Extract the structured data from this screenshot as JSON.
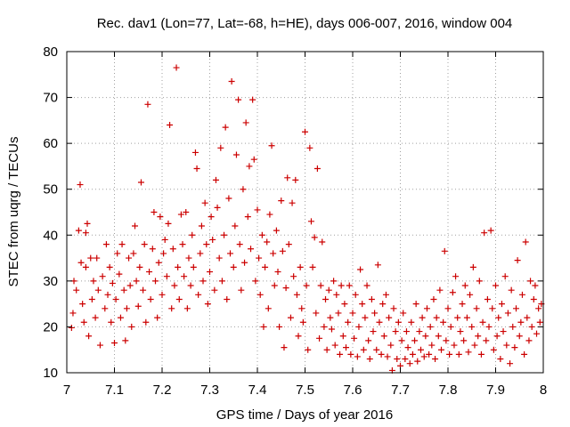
{
  "chart_data": {
    "type": "scatter",
    "title": "Rec. dav1 (Lon=77, Lat=-68, h=HE), days 006-007, 2016, window 004",
    "xlabel": "GPS time / Days of year 2016",
    "ylabel": "STEC from uqrg / TECUs",
    "xlim": [
      7.0,
      8.0
    ],
    "ylim": [
      10,
      80
    ],
    "xticks": [
      7.0,
      7.1,
      7.2,
      7.3,
      7.4,
      7.5,
      7.6,
      7.7,
      7.8,
      7.9,
      8.0
    ],
    "xtick_labels": [
      "7",
      "7.1",
      "7.2",
      "7.3",
      "7.4",
      "7.5",
      "7.6",
      "7.7",
      "7.8",
      "7.9",
      "8"
    ],
    "yticks": [
      10,
      20,
      30,
      40,
      50,
      60,
      70,
      80
    ],
    "ytick_labels": [
      "10",
      "20",
      "30",
      "40",
      "50",
      "60",
      "70",
      "80"
    ],
    "grid": true,
    "marker": "plus",
    "color": "#cc0000",
    "series": [
      {
        "name": "STEC",
        "points": [
          [
            7.01,
            19.8
          ],
          [
            7.013,
            23.0
          ],
          [
            7.015,
            30.0
          ],
          [
            7.02,
            28.0
          ],
          [
            7.025,
            41.0
          ],
          [
            7.028,
            51.0
          ],
          [
            7.03,
            34.0
          ],
          [
            7.033,
            25.0
          ],
          [
            7.036,
            21.0
          ],
          [
            7.04,
            33.0
          ],
          [
            7.04,
            40.5
          ],
          [
            7.043,
            42.5
          ],
          [
            7.046,
            18.0
          ],
          [
            7.05,
            35.0
          ],
          [
            7.053,
            26.0
          ],
          [
            7.056,
            30.0
          ],
          [
            7.06,
            22.0
          ],
          [
            7.063,
            35.0
          ],
          [
            7.066,
            28.0
          ],
          [
            7.07,
            16.0
          ],
          [
            7.075,
            31.0
          ],
          [
            7.08,
            24.0
          ],
          [
            7.083,
            38.0
          ],
          [
            7.086,
            27.0
          ],
          [
            7.09,
            33.0
          ],
          [
            7.093,
            21.0
          ],
          [
            7.096,
            29.5
          ],
          [
            7.1,
            16.5
          ],
          [
            7.103,
            26.0
          ],
          [
            7.106,
            36.0
          ],
          [
            7.11,
            31.5
          ],
          [
            7.113,
            22.0
          ],
          [
            7.116,
            38.0
          ],
          [
            7.12,
            28.0
          ],
          [
            7.123,
            17.0
          ],
          [
            7.126,
            24.0
          ],
          [
            7.13,
            35.0
          ],
          [
            7.133,
            29.0
          ],
          [
            7.136,
            20.0
          ],
          [
            7.14,
            36.0
          ],
          [
            7.143,
            42.0
          ],
          [
            7.146,
            30.0
          ],
          [
            7.15,
            24.5
          ],
          [
            7.153,
            33.0
          ],
          [
            7.156,
            51.5
          ],
          [
            7.16,
            28.0
          ],
          [
            7.163,
            38.0
          ],
          [
            7.166,
            21.0
          ],
          [
            7.17,
            68.5
          ],
          [
            7.173,
            32.0
          ],
          [
            7.176,
            26.0
          ],
          [
            7.18,
            37.0
          ],
          [
            7.183,
            45.0
          ],
          [
            7.186,
            30.0
          ],
          [
            7.19,
            22.0
          ],
          [
            7.193,
            34.0
          ],
          [
            7.196,
            44.0
          ],
          [
            7.2,
            27.0
          ],
          [
            7.203,
            36.0
          ],
          [
            7.206,
            39.0
          ],
          [
            7.21,
            31.0
          ],
          [
            7.213,
            42.5
          ],
          [
            7.216,
            64.0
          ],
          [
            7.22,
            24.0
          ],
          [
            7.223,
            37.0
          ],
          [
            7.226,
            29.0
          ],
          [
            7.23,
            76.5
          ],
          [
            7.233,
            33.0
          ],
          [
            7.236,
            26.0
          ],
          [
            7.24,
            44.5
          ],
          [
            7.243,
            38.0
          ],
          [
            7.246,
            31.0
          ],
          [
            7.25,
            45.0
          ],
          [
            7.253,
            24.0
          ],
          [
            7.256,
            35.0
          ],
          [
            7.26,
            29.0
          ],
          [
            7.263,
            40.0
          ],
          [
            7.266,
            33.0
          ],
          [
            7.27,
            58.0
          ],
          [
            7.273,
            54.5
          ],
          [
            7.276,
            27.0
          ],
          [
            7.28,
            36.0
          ],
          [
            7.283,
            42.0
          ],
          [
            7.286,
            30.0
          ],
          [
            7.29,
            47.0
          ],
          [
            7.293,
            38.0
          ],
          [
            7.296,
            25.0
          ],
          [
            7.3,
            32.0
          ],
          [
            7.303,
            44.0
          ],
          [
            7.306,
            39.0
          ],
          [
            7.31,
            28.0
          ],
          [
            7.313,
            52.0
          ],
          [
            7.316,
            46.0
          ],
          [
            7.32,
            35.0
          ],
          [
            7.323,
            59.0
          ],
          [
            7.326,
            30.0
          ],
          [
            7.33,
            40.0
          ],
          [
            7.333,
            63.5
          ],
          [
            7.336,
            26.0
          ],
          [
            7.34,
            48.0
          ],
          [
            7.343,
            36.0
          ],
          [
            7.346,
            73.5
          ],
          [
            7.35,
            33.0
          ],
          [
            7.353,
            42.0
          ],
          [
            7.356,
            57.5
          ],
          [
            7.36,
            69.5
          ],
          [
            7.363,
            38.0
          ],
          [
            7.366,
            28.0
          ],
          [
            7.37,
            50.0
          ],
          [
            7.373,
            34.0
          ],
          [
            7.376,
            64.5
          ],
          [
            7.38,
            44.0
          ],
          [
            7.383,
            55.0
          ],
          [
            7.386,
            37.0
          ],
          [
            7.39,
            69.5
          ],
          [
            7.393,
            56.5
          ],
          [
            7.396,
            30.0
          ],
          [
            7.4,
            45.5
          ],
          [
            7.403,
            35.0
          ],
          [
            7.406,
            27.0
          ],
          [
            7.41,
            40.0
          ],
          [
            7.413,
            20.0
          ],
          [
            7.416,
            33.0
          ],
          [
            7.42,
            38.5
          ],
          [
            7.423,
            24.0
          ],
          [
            7.426,
            44.5
          ],
          [
            7.43,
            59.5
          ],
          [
            7.433,
            36.0
          ],
          [
            7.436,
            29.0
          ],
          [
            7.44,
            41.0
          ],
          [
            7.443,
            32.0
          ],
          [
            7.446,
            20.0
          ],
          [
            7.45,
            47.5
          ],
          [
            7.453,
            36.5
          ],
          [
            7.456,
            15.5
          ],
          [
            7.46,
            28.5
          ],
          [
            7.463,
            52.5
          ],
          [
            7.466,
            38.0
          ],
          [
            7.47,
            22.0
          ],
          [
            7.473,
            47.0
          ],
          [
            7.476,
            31.0
          ],
          [
            7.48,
            52.0
          ],
          [
            7.483,
            27.0
          ],
          [
            7.486,
            18.0
          ],
          [
            7.49,
            33.0
          ],
          [
            7.493,
            24.0
          ],
          [
            7.496,
            21.0
          ],
          [
            7.5,
            62.5
          ],
          [
            7.503,
            29.0
          ],
          [
            7.506,
            15.0
          ],
          [
            7.51,
            59.0
          ],
          [
            7.513,
            43.0
          ],
          [
            7.516,
            33.0
          ],
          [
            7.52,
            39.5
          ],
          [
            7.523,
            23.0
          ],
          [
            7.526,
            54.5
          ],
          [
            7.53,
            17.5
          ],
          [
            7.533,
            29.0
          ],
          [
            7.536,
            38.5
          ],
          [
            7.54,
            20.0
          ],
          [
            7.543,
            26.0
          ],
          [
            7.546,
            15.0
          ],
          [
            7.55,
            28.0
          ],
          [
            7.553,
            22.0
          ],
          [
            7.556,
            19.5
          ],
          [
            7.56,
            30.0
          ],
          [
            7.563,
            16.0
          ],
          [
            7.566,
            27.0
          ],
          [
            7.57,
            23.0
          ],
          [
            7.573,
            14.0
          ],
          [
            7.576,
            29.0
          ],
          [
            7.58,
            18.0
          ],
          [
            7.583,
            25.0
          ],
          [
            7.586,
            15.5
          ],
          [
            7.59,
            21.0
          ],
          [
            7.593,
            29.0
          ],
          [
            7.596,
            14.0
          ],
          [
            7.6,
            23.0
          ],
          [
            7.603,
            17.5
          ],
          [
            7.606,
            27.0
          ],
          [
            7.61,
            13.5
          ],
          [
            7.613,
            20.0
          ],
          [
            7.616,
            32.5
          ],
          [
            7.62,
            25.0
          ],
          [
            7.623,
            15.0
          ],
          [
            7.626,
            22.0
          ],
          [
            7.63,
            29.0
          ],
          [
            7.633,
            17.0
          ],
          [
            7.636,
            13.0
          ],
          [
            7.64,
            26.0
          ],
          [
            7.643,
            19.0
          ],
          [
            7.646,
            23.0
          ],
          [
            7.65,
            15.0
          ],
          [
            7.653,
            33.5
          ],
          [
            7.656,
            21.0
          ],
          [
            7.66,
            14.0
          ],
          [
            7.663,
            25.0
          ],
          [
            7.666,
            18.0
          ],
          [
            7.67,
            27.0
          ],
          [
            7.673,
            13.5
          ],
          [
            7.676,
            22.0
          ],
          [
            7.68,
            16.0
          ],
          [
            7.683,
            10.5
          ],
          [
            7.686,
            24.0
          ],
          [
            7.69,
            19.0
          ],
          [
            7.693,
            13.0
          ],
          [
            7.696,
            21.0
          ],
          [
            7.7,
            11.5
          ],
          [
            7.703,
            17.0
          ],
          [
            7.706,
            23.0
          ],
          [
            7.71,
            13.0
          ],
          [
            7.713,
            19.0
          ],
          [
            7.716,
            15.5
          ],
          [
            7.72,
            12.0
          ],
          [
            7.723,
            21.0
          ],
          [
            7.726,
            14.0
          ],
          [
            7.73,
            17.0
          ],
          [
            7.733,
            25.0
          ],
          [
            7.736,
            12.5
          ],
          [
            7.74,
            19.0
          ],
          [
            7.743,
            15.0
          ],
          [
            7.746,
            22.0
          ],
          [
            7.75,
            13.5
          ],
          [
            7.753,
            18.0
          ],
          [
            7.756,
            24.0
          ],
          [
            7.76,
            14.0
          ],
          [
            7.763,
            20.0
          ],
          [
            7.766,
            16.0
          ],
          [
            7.77,
            26.0
          ],
          [
            7.773,
            13.0
          ],
          [
            7.776,
            22.0
          ],
          [
            7.78,
            18.0
          ],
          [
            7.783,
            28.0
          ],
          [
            7.786,
            15.0
          ],
          [
            7.79,
            21.0
          ],
          [
            7.793,
            36.5
          ],
          [
            7.796,
            17.0
          ],
          [
            7.8,
            24.0
          ],
          [
            7.803,
            14.0
          ],
          [
            7.806,
            20.0
          ],
          [
            7.81,
            27.5
          ],
          [
            7.813,
            16.0
          ],
          [
            7.816,
            31.0
          ],
          [
            7.82,
            22.0
          ],
          [
            7.823,
            14.0
          ],
          [
            7.826,
            19.0
          ],
          [
            7.83,
            25.0
          ],
          [
            7.833,
            17.0
          ],
          [
            7.836,
            29.0
          ],
          [
            7.84,
            22.0
          ],
          [
            7.843,
            14.5
          ],
          [
            7.846,
            27.0
          ],
          [
            7.85,
            20.0
          ],
          [
            7.853,
            33.0
          ],
          [
            7.856,
            16.0
          ],
          [
            7.86,
            24.0
          ],
          [
            7.863,
            18.0
          ],
          [
            7.866,
            30.0
          ],
          [
            7.87,
            14.0
          ],
          [
            7.873,
            21.0
          ],
          [
            7.876,
            40.5
          ],
          [
            7.88,
            17.0
          ],
          [
            7.883,
            26.0
          ],
          [
            7.886,
            20.0
          ],
          [
            7.89,
            41.0
          ],
          [
            7.893,
            24.0
          ],
          [
            7.896,
            15.0
          ],
          [
            7.9,
            29.0
          ],
          [
            7.903,
            18.0
          ],
          [
            7.906,
            22.0
          ],
          [
            7.91,
            13.0
          ],
          [
            7.913,
            25.0
          ],
          [
            7.916,
            19.0
          ],
          [
            7.92,
            31.0
          ],
          [
            7.923,
            16.0
          ],
          [
            7.926,
            23.0
          ],
          [
            7.93,
            12.0
          ],
          [
            7.933,
            28.0
          ],
          [
            7.936,
            20.0
          ],
          [
            7.94,
            15.5
          ],
          [
            7.943,
            24.0
          ],
          [
            7.946,
            34.5
          ],
          [
            7.95,
            18.0
          ],
          [
            7.953,
            21.0
          ],
          [
            7.956,
            27.0
          ],
          [
            7.96,
            14.0
          ],
          [
            7.963,
            38.5
          ],
          [
            7.966,
            22.0
          ],
          [
            7.97,
            17.0
          ],
          [
            7.973,
            30.0
          ],
          [
            7.976,
            20.0
          ],
          [
            7.98,
            26.0
          ],
          [
            7.983,
            29.0
          ],
          [
            7.986,
            18.5
          ],
          [
            7.99,
            24.0
          ],
          [
            7.993,
            21.0
          ],
          [
            7.996,
            25.0
          ]
        ]
      }
    ]
  }
}
